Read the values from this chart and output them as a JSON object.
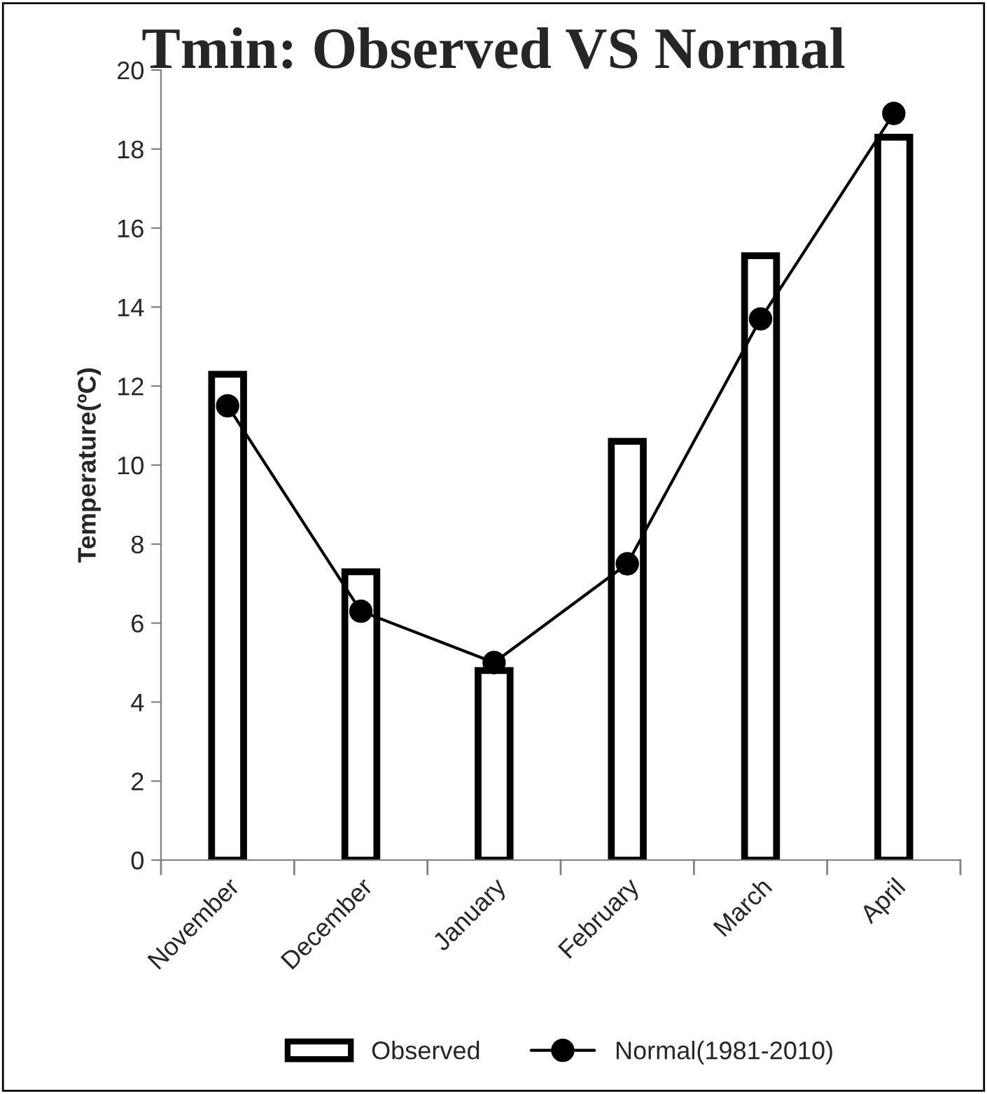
{
  "chart_data": {
    "type": "bar",
    "title": "Tmin: Observed VS Normal",
    "ylabel": "Temperature(ºC)",
    "categories": [
      "November",
      "December",
      "January",
      "February",
      "March",
      "April"
    ],
    "series": [
      {
        "name": "Observed",
        "color": "#ffffff",
        "values": [
          12.3,
          7.3,
          4.8,
          10.6,
          15.3,
          18.3
        ]
      },
      {
        "name": "Normal(1981-2010)",
        "type": "line",
        "color": "#000000",
        "marker": "circle",
        "line_style": "solid",
        "values": [
          11.5,
          6.3,
          5.0,
          7.5,
          13.7,
          18.9
        ]
      }
    ],
    "ylim": [
      0,
      20
    ],
    "yticks": [
      0,
      2,
      4,
      6,
      8,
      10,
      12,
      14,
      16,
      18,
      20
    ],
    "grid": false,
    "legend": "bottom"
  }
}
